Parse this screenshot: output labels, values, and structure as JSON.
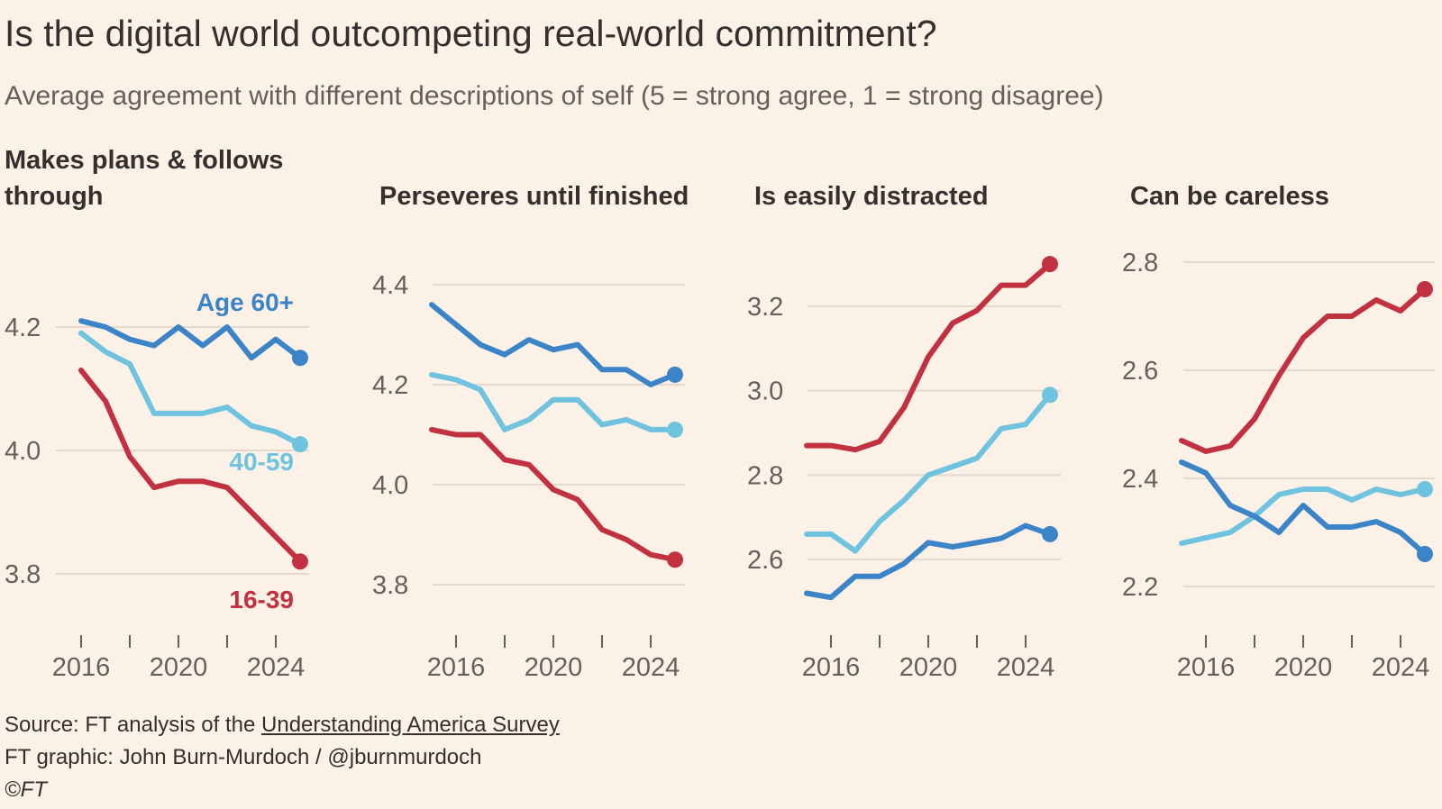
{
  "title": "Is the digital world outcompeting real-world commitment?",
  "subtitle": "Average agreement with different descriptions of self (5 = strong agree, 1 = strong disagree)",
  "footer": {
    "source_prefix": "Source: FT analysis of the ",
    "source_link": "Understanding America Survey",
    "credit": "FT graphic: John Burn-Murdoch / @jburnmurdoch",
    "copyright": "©FT"
  },
  "colors": {
    "16-39": "#c1313f",
    "40-59": "#6fc3df",
    "Age 60+": "#3b84c8",
    "background": "#fcf1e6"
  },
  "chart_data": [
    {
      "type": "line",
      "title": "Makes plans & follows through",
      "x": [
        2016,
        2017,
        2018,
        2019,
        2020,
        2021,
        2022,
        2023,
        2024,
        2025
      ],
      "xticks": [
        "2016",
        "2020",
        "2024"
      ],
      "yticks": [
        "3.8",
        "4.0",
        "4.2"
      ],
      "ylim": [
        3.8,
        4.2
      ],
      "grid": true,
      "series": [
        {
          "name": "Age 60+",
          "values": [
            4.21,
            4.2,
            4.18,
            4.17,
            4.2,
            4.17,
            4.2,
            4.15,
            4.18,
            4.15
          ]
        },
        {
          "name": "40-59",
          "values": [
            4.19,
            4.16,
            4.14,
            4.06,
            4.06,
            4.06,
            4.07,
            4.04,
            4.03,
            4.01
          ]
        },
        {
          "name": "16-39",
          "values": [
            4.13,
            4.08,
            3.99,
            3.94,
            3.95,
            3.95,
            3.94,
            3.9,
            3.86,
            3.82
          ]
        }
      ]
    },
    {
      "type": "line",
      "title": "Perseveres until finished",
      "x": [
        2015,
        2016,
        2017,
        2018,
        2019,
        2020,
        2021,
        2022,
        2023,
        2024,
        2025
      ],
      "xticks": [
        "2016",
        "2020",
        "2024"
      ],
      "yticks": [
        "3.8",
        "4.0",
        "4.2",
        "4.4"
      ],
      "ylim": [
        3.8,
        4.4
      ],
      "grid": true,
      "series": [
        {
          "name": "Age 60+",
          "values": [
            4.36,
            4.32,
            4.28,
            4.26,
            4.29,
            4.27,
            4.28,
            4.23,
            4.23,
            4.2,
            4.22
          ]
        },
        {
          "name": "40-59",
          "values": [
            4.22,
            4.21,
            4.19,
            4.11,
            4.13,
            4.17,
            4.17,
            4.12,
            4.13,
            4.11,
            4.11
          ]
        },
        {
          "name": "16-39",
          "values": [
            4.11,
            4.1,
            4.1,
            4.05,
            4.04,
            3.99,
            3.97,
            3.91,
            3.89,
            3.86,
            3.85
          ]
        }
      ]
    },
    {
      "type": "line",
      "title": "Is easily distracted",
      "x": [
        2015,
        2016,
        2017,
        2018,
        2019,
        2020,
        2021,
        2022,
        2023,
        2024,
        2025
      ],
      "xticks": [
        "2016",
        "2020",
        "2024"
      ],
      "yticks": [
        "2.6",
        "2.8",
        "3.0",
        "3.2"
      ],
      "ylim": [
        2.6,
        3.2
      ],
      "grid": true,
      "series": [
        {
          "name": "16-39",
          "values": [
            2.87,
            2.87,
            2.86,
            2.88,
            2.96,
            3.08,
            3.16,
            3.19,
            3.25,
            3.25,
            3.3
          ]
        },
        {
          "name": "40-59",
          "values": [
            2.66,
            2.66,
            2.62,
            2.69,
            2.74,
            2.8,
            2.82,
            2.84,
            2.91,
            2.92,
            2.99
          ]
        },
        {
          "name": "Age 60+",
          "values": [
            2.52,
            2.51,
            2.56,
            2.56,
            2.59,
            2.64,
            2.63,
            2.64,
            2.65,
            2.68,
            2.66
          ]
        }
      ]
    },
    {
      "type": "line",
      "title": "Can be careless",
      "x": [
        2015,
        2016,
        2017,
        2018,
        2019,
        2020,
        2021,
        2022,
        2023,
        2024,
        2025
      ],
      "xticks": [
        "2016",
        "2020",
        "2024"
      ],
      "yticks": [
        "2.2",
        "2.4",
        "2.6",
        "2.8"
      ],
      "ylim": [
        2.2,
        2.8
      ],
      "grid": true,
      "series": [
        {
          "name": "16-39",
          "values": [
            2.47,
            2.45,
            2.46,
            2.51,
            2.59,
            2.66,
            2.7,
            2.7,
            2.73,
            2.71,
            2.75
          ]
        },
        {
          "name": "40-59",
          "values": [
            2.28,
            2.29,
            2.3,
            2.33,
            2.37,
            2.38,
            2.38,
            2.36,
            2.38,
            2.37,
            2.38
          ]
        },
        {
          "name": "Age 60+",
          "values": [
            2.43,
            2.41,
            2.35,
            2.33,
            2.3,
            2.35,
            2.31,
            2.31,
            2.32,
            2.3,
            2.26
          ]
        }
      ]
    }
  ],
  "series_labels": [
    "Age 60+",
    "40-59",
    "16-39"
  ]
}
